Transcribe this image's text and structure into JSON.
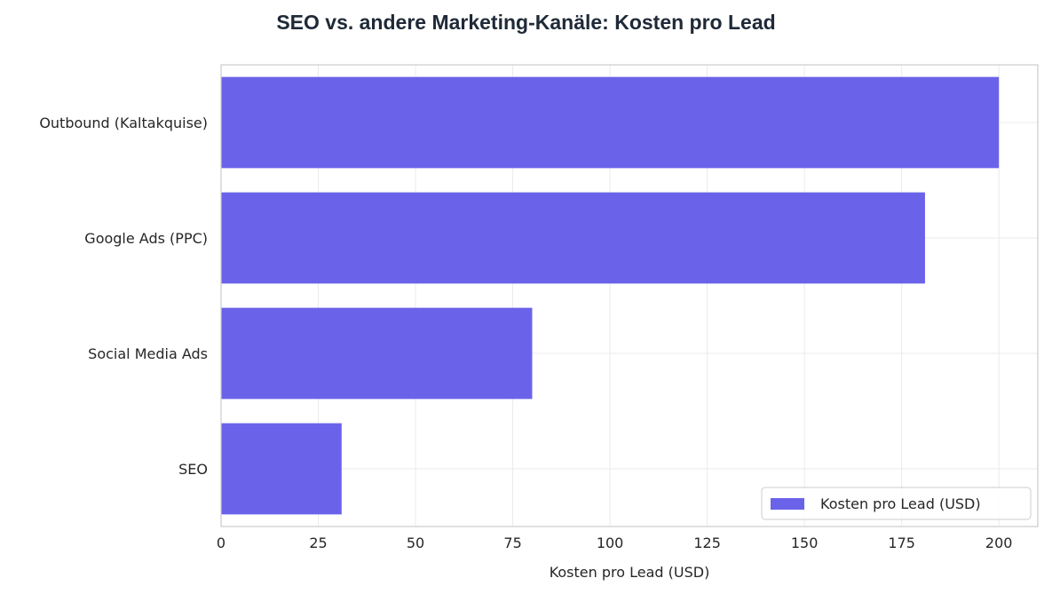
{
  "chart_data": {
    "type": "bar",
    "orientation": "horizontal",
    "title": "SEO vs. andere Marketing-Kanäle: Kosten pro Lead",
    "xlabel": "Kosten pro Lead (USD)",
    "ylabel": "",
    "categories": [
      "SEO",
      "Social Media Ads",
      "Google Ads (PPC)",
      "Outbound (Kaltakquise)"
    ],
    "series": [
      {
        "name": "Kosten pro Lead (USD)",
        "values": [
          31,
          80,
          181,
          200
        ],
        "color": "#6A63E9"
      }
    ],
    "xlim": [
      0,
      210
    ],
    "xticks": [
      0,
      25,
      50,
      75,
      100,
      125,
      150,
      175,
      200
    ],
    "grid": true,
    "legend": "bottom-right"
  }
}
